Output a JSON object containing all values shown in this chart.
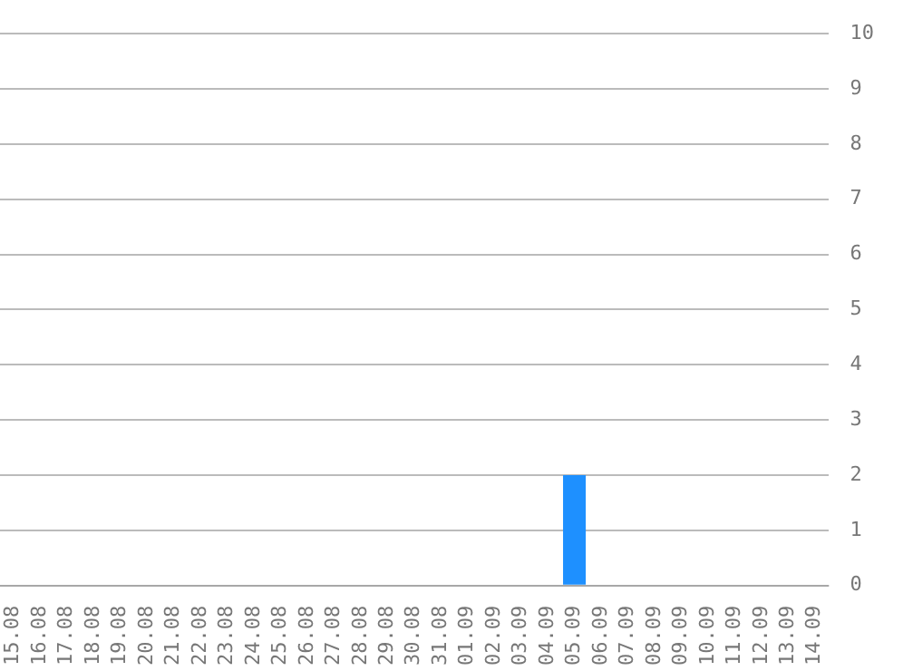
{
  "chart_data": {
    "type": "bar",
    "categories": [
      "15.08",
      "16.08",
      "17.08",
      "18.08",
      "19.08",
      "20.08",
      "21.08",
      "22.08",
      "23.08",
      "24.08",
      "25.08",
      "26.08",
      "27.08",
      "28.08",
      "29.08",
      "30.08",
      "31.08",
      "01.09",
      "02.09",
      "03.09",
      "04.09",
      "05.09",
      "06.09",
      "07.09",
      "08.09",
      "09.09",
      "10.09",
      "11.09",
      "12.09",
      "13.09",
      "14.09"
    ],
    "values": [
      0,
      0,
      0,
      0,
      0,
      0,
      0,
      0,
      0,
      0,
      0,
      0,
      0,
      0,
      0,
      0,
      0,
      0,
      0,
      0,
      0,
      2,
      0,
      0,
      0,
      0,
      0,
      0,
      0,
      0,
      0
    ],
    "color": "#1e90ff",
    "ylim": [
      0,
      10
    ],
    "yticks": [
      0,
      1,
      2,
      3,
      4,
      5,
      6,
      7,
      8,
      9,
      10
    ],
    "grid": "y",
    "legend": false
  }
}
